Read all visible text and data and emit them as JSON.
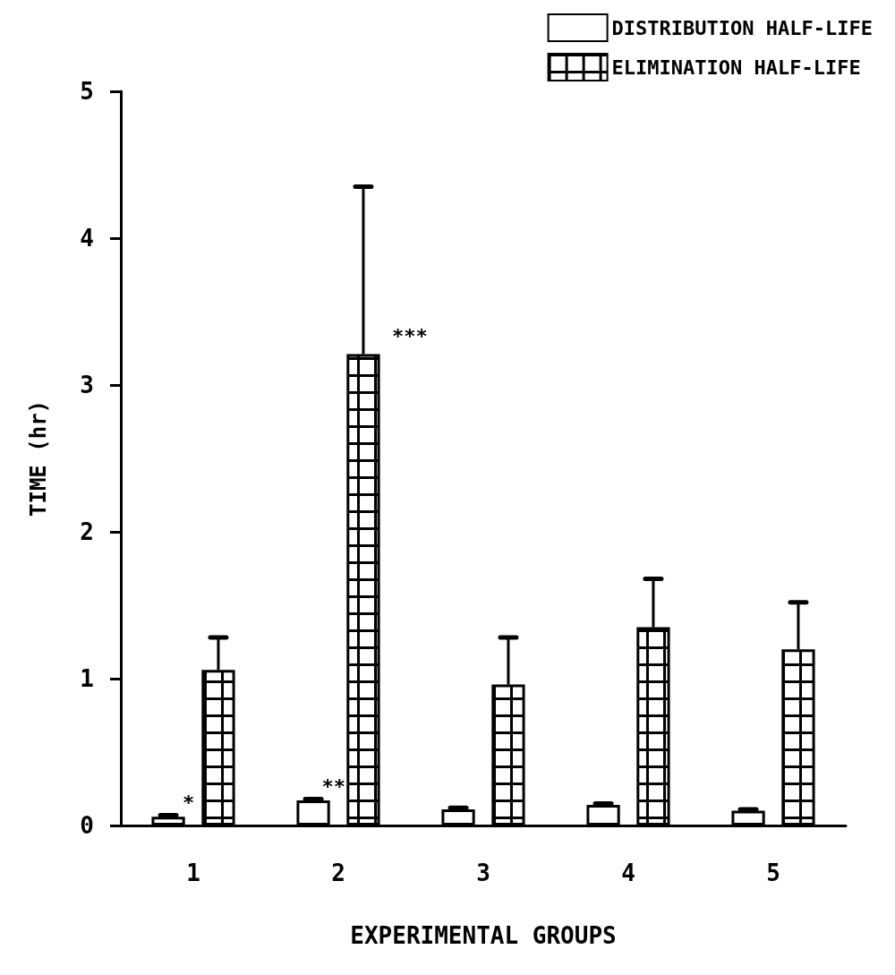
{
  "chart_data": {
    "type": "bar",
    "xlabel": "EXPERIMENTAL GROUPS",
    "ylabel": "TIME (hr)",
    "categories": [
      "1",
      "2",
      "3",
      "4",
      "5"
    ],
    "series": [
      {
        "name": "DISTRIBUTION HALF-LIFE",
        "color": "#ffffff",
        "values": [
          0.06,
          0.17,
          0.11,
          0.14,
          0.1
        ],
        "errors": [
          0.01,
          0.01,
          0.01,
          0.01,
          0.01
        ]
      },
      {
        "name": "ELIMINATION HALF-LIFE",
        "color": "#000000",
        "values": [
          1.06,
          3.21,
          0.96,
          1.35,
          1.2
        ],
        "errors": [
          [
            1.06,
            1.28
          ],
          [
            3.21,
            4.35
          ],
          [
            0.96,
            1.28
          ],
          [
            1.35,
            1.68
          ],
          [
            1.2,
            1.52
          ]
        ]
      }
    ],
    "ylim": [
      0,
      5
    ],
    "yticks": [
      0,
      1,
      2,
      3,
      4,
      5
    ],
    "grid": false,
    "legend": "top right",
    "annotations": [
      "*",
      "**",
      "***"
    ]
  }
}
